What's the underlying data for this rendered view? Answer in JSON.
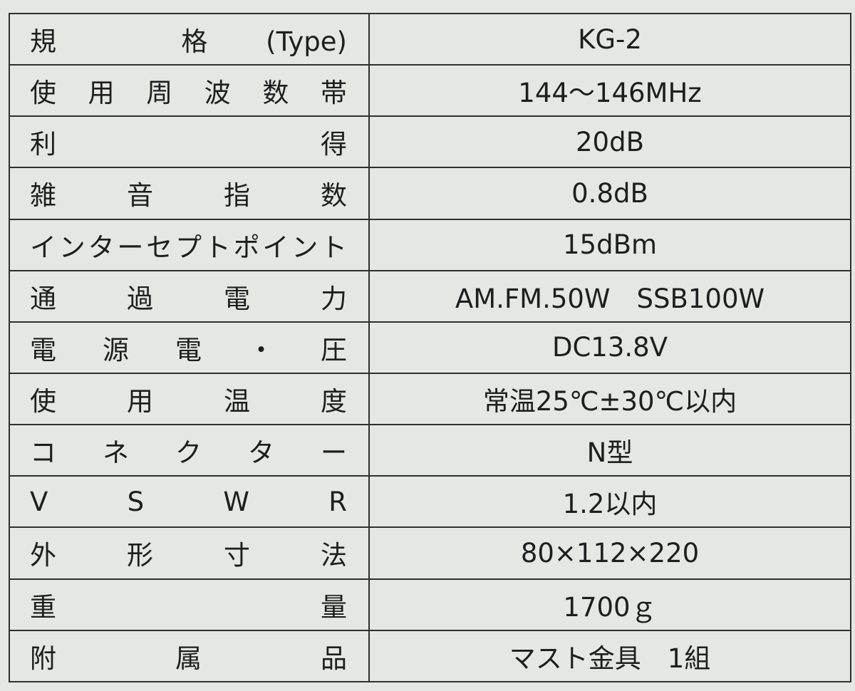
{
  "spec_table": {
    "rows": [
      {
        "label": "規 格(Type)",
        "value": "KG-2"
      },
      {
        "label": "使 用 周 波 数 帯",
        "value": "144～146MHz"
      },
      {
        "label": "利 得",
        "value": "20dB"
      },
      {
        "label": "雑 音 指 数",
        "value": "0.8dB"
      },
      {
        "label": "インターセプトポイント",
        "value": "15dBm"
      },
      {
        "label": "通 過 電 力",
        "value": "AM.FM.50W　SSB100W"
      },
      {
        "label": "電 源 電 ・ 圧",
        "value": "DC13.8V"
      },
      {
        "label": "使 用 温 度",
        "value": "常温25℃±30℃以内"
      },
      {
        "label": "コ ネ ク タ ー",
        "value": "N型"
      },
      {
        "label": "V S W R",
        "value": "1.2以内"
      },
      {
        "label": "外 形 寸 法",
        "value": "80×112×220"
      },
      {
        "label": "重 量",
        "value": "1700ｇ"
      },
      {
        "label": "附 属 品",
        "value": "マスト金具　1組"
      }
    ]
  }
}
